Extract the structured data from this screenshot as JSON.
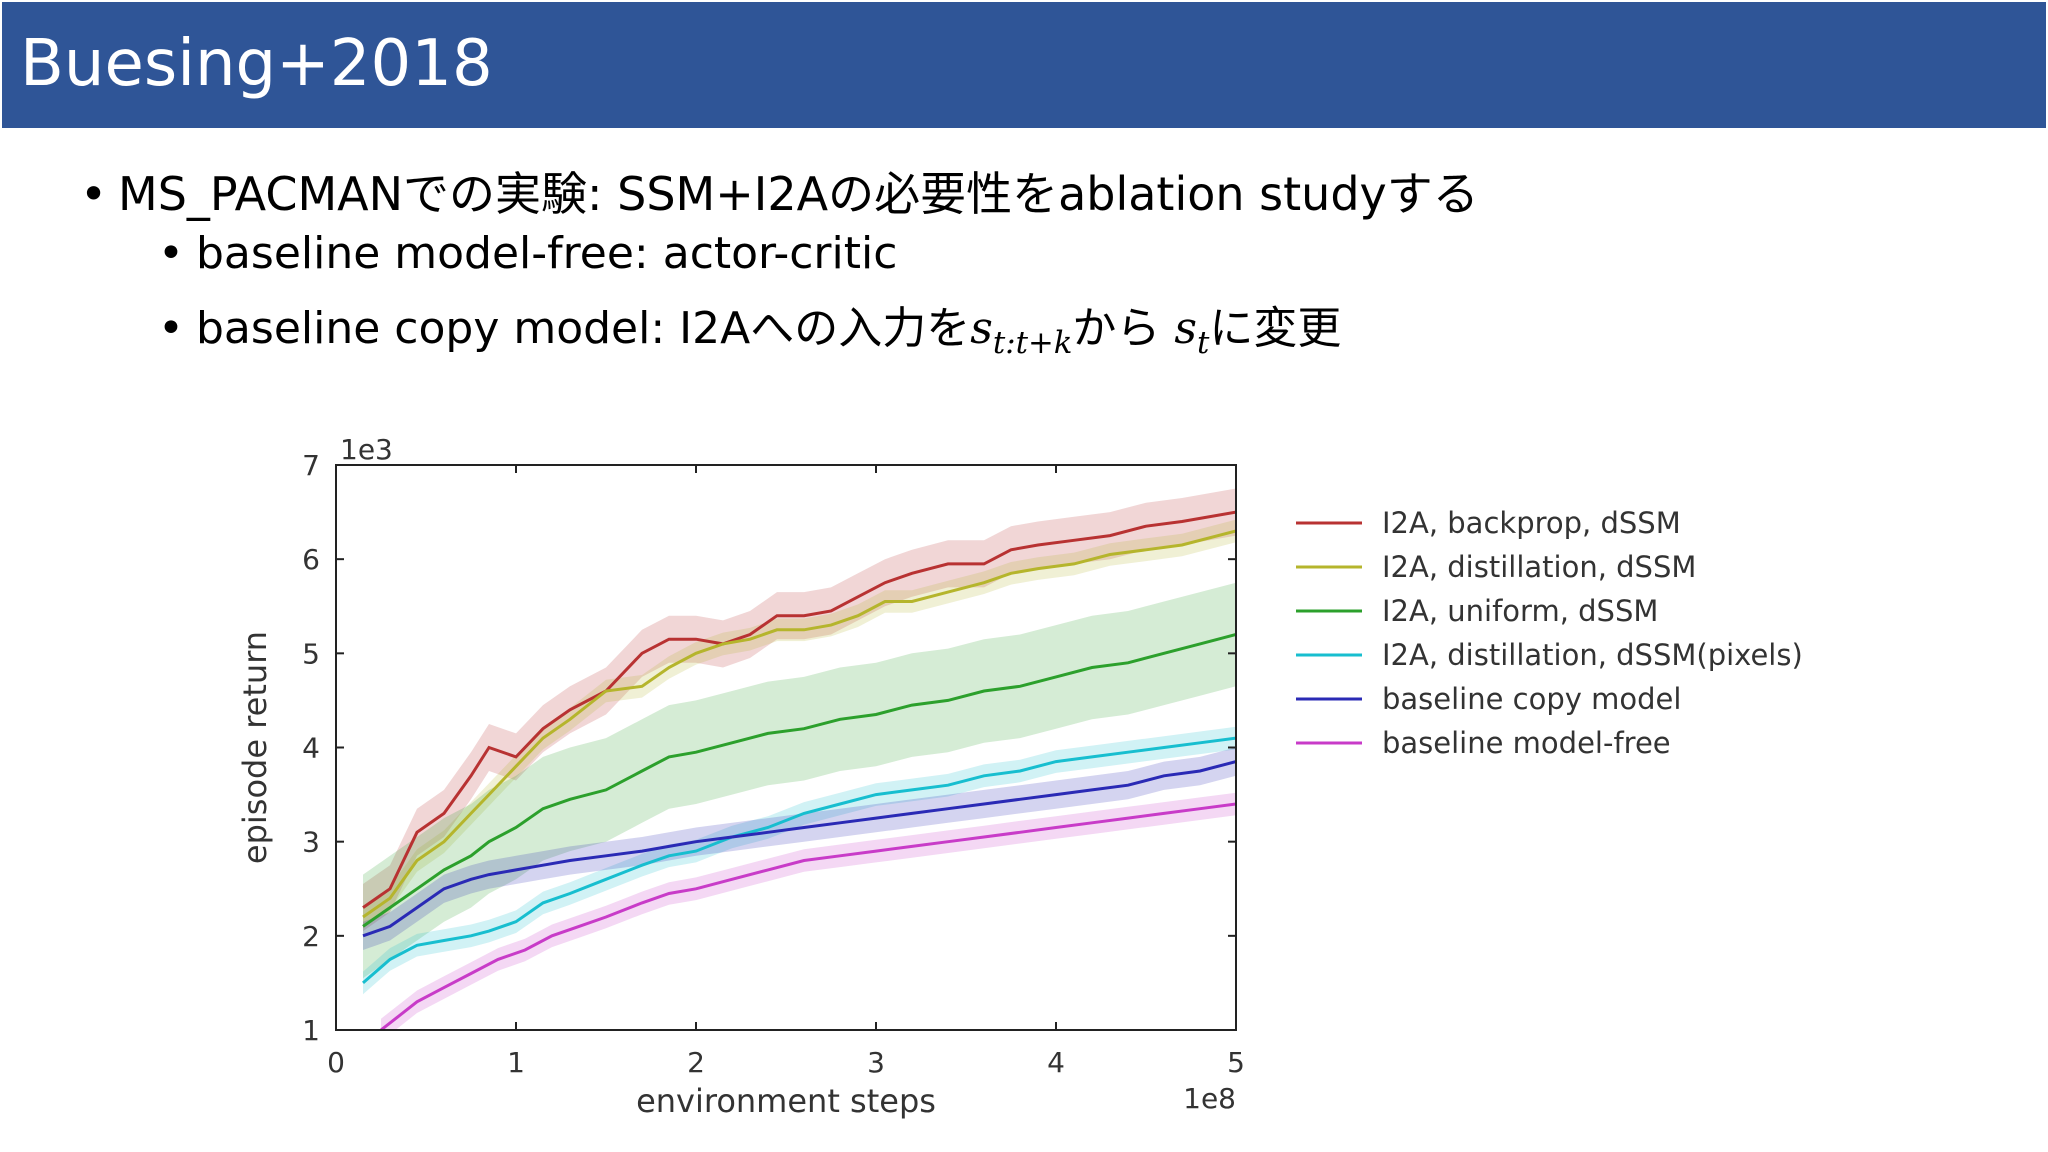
{
  "slide": {
    "title": "Buesing+2018",
    "bullet1": "MS_PACMANでの実験: SSM+I2Aの必要性をablation studyする",
    "bullet2": "baseline model-free: actor-critic",
    "bullet3_pre": "baseline copy model: I2Aへの入力を",
    "bullet3_math1": "s",
    "bullet3_math1_sub": "t:t+k",
    "bullet3_mid": "から ",
    "bullet3_math2": "s",
    "bullet3_math2_sub": "t",
    "bullet3_post": "に変更"
  },
  "chart_data": {
    "type": "line",
    "xlabel": "environment steps",
    "ylabel": "episode return",
    "x_multiplier": "1e8",
    "y_multiplier": "1e3",
    "xlim": [
      0,
      5
    ],
    "ylim": [
      1,
      7
    ],
    "xticks": [
      "0",
      "1",
      "2",
      "3",
      "4",
      "5"
    ],
    "yticks": [
      "1",
      "2",
      "3",
      "4",
      "5",
      "6",
      "7"
    ],
    "grid": false,
    "legend_position": "right-outside",
    "series": [
      {
        "name": "I2A, backprop, dSSM",
        "color": "#b83232",
        "x": [
          0.15,
          0.3,
          0.45,
          0.6,
          0.75,
          0.85,
          1.0,
          1.15,
          1.3,
          1.5,
          1.7,
          1.85,
          2.0,
          2.15,
          2.3,
          2.45,
          2.6,
          2.75,
          2.9,
          3.05,
          3.2,
          3.4,
          3.6,
          3.75,
          3.9,
          4.1,
          4.3,
          4.5,
          4.7,
          5.0
        ],
        "y": [
          2.3,
          2.5,
          3.1,
          3.3,
          3.7,
          4.0,
          3.9,
          4.2,
          4.4,
          4.6,
          5.0,
          5.15,
          5.15,
          5.1,
          5.2,
          5.4,
          5.4,
          5.45,
          5.6,
          5.75,
          5.85,
          5.95,
          5.95,
          6.1,
          6.15,
          6.2,
          6.25,
          6.35,
          6.4,
          6.5
        ],
        "band": 0.25
      },
      {
        "name": "I2A, distillation, dSSM",
        "color": "#b5b52c",
        "x": [
          0.15,
          0.3,
          0.45,
          0.6,
          0.75,
          0.85,
          1.0,
          1.15,
          1.3,
          1.5,
          1.7,
          1.85,
          2.0,
          2.15,
          2.3,
          2.45,
          2.6,
          2.75,
          2.9,
          3.05,
          3.2,
          3.4,
          3.6,
          3.75,
          3.9,
          4.1,
          4.3,
          4.5,
          4.7,
          5.0
        ],
        "y": [
          2.2,
          2.4,
          2.8,
          3.0,
          3.3,
          3.5,
          3.8,
          4.1,
          4.3,
          4.6,
          4.65,
          4.85,
          5.0,
          5.1,
          5.15,
          5.25,
          5.25,
          5.3,
          5.4,
          5.55,
          5.55,
          5.65,
          5.75,
          5.85,
          5.9,
          5.95,
          6.05,
          6.1,
          6.15,
          6.3
        ],
        "band": 0.12
      },
      {
        "name": "I2A, uniform, dSSM",
        "color": "#2ca02c",
        "x": [
          0.15,
          0.3,
          0.45,
          0.6,
          0.75,
          0.85,
          1.0,
          1.15,
          1.3,
          1.5,
          1.7,
          1.85,
          2.0,
          2.2,
          2.4,
          2.6,
          2.8,
          3.0,
          3.2,
          3.4,
          3.6,
          3.8,
          4.0,
          4.2,
          4.4,
          4.6,
          4.8,
          5.0
        ],
        "y": [
          2.1,
          2.3,
          2.5,
          2.7,
          2.85,
          3.0,
          3.15,
          3.35,
          3.45,
          3.55,
          3.75,
          3.9,
          3.95,
          4.05,
          4.15,
          4.2,
          4.3,
          4.35,
          4.45,
          4.5,
          4.6,
          4.65,
          4.75,
          4.85,
          4.9,
          5.0,
          5.1,
          5.2
        ],
        "band": 0.55
      },
      {
        "name": "I2A, distillation, dSSM(pixels)",
        "color": "#17becf",
        "x": [
          0.15,
          0.3,
          0.45,
          0.6,
          0.75,
          0.85,
          1.0,
          1.15,
          1.3,
          1.5,
          1.7,
          1.85,
          2.0,
          2.2,
          2.4,
          2.6,
          2.8,
          3.0,
          3.2,
          3.4,
          3.6,
          3.8,
          4.0,
          4.2,
          4.4,
          4.6,
          4.8,
          5.0
        ],
        "y": [
          1.5,
          1.75,
          1.9,
          1.95,
          2.0,
          2.05,
          2.15,
          2.35,
          2.45,
          2.6,
          2.75,
          2.85,
          2.9,
          3.05,
          3.15,
          3.3,
          3.4,
          3.5,
          3.55,
          3.6,
          3.7,
          3.75,
          3.85,
          3.9,
          3.95,
          4.0,
          4.05,
          4.1
        ],
        "band": 0.12
      },
      {
        "name": "baseline copy model",
        "color": "#2a2ab5",
        "x": [
          0.15,
          0.3,
          0.45,
          0.6,
          0.75,
          0.85,
          1.0,
          1.15,
          1.3,
          1.5,
          1.7,
          1.85,
          2.0,
          2.2,
          2.4,
          2.6,
          2.8,
          3.0,
          3.2,
          3.4,
          3.6,
          3.8,
          4.0,
          4.2,
          4.4,
          4.6,
          4.8,
          5.0
        ],
        "y": [
          2.0,
          2.1,
          2.3,
          2.5,
          2.6,
          2.65,
          2.7,
          2.75,
          2.8,
          2.85,
          2.9,
          2.95,
          3.0,
          3.05,
          3.1,
          3.15,
          3.2,
          3.25,
          3.3,
          3.35,
          3.4,
          3.45,
          3.5,
          3.55,
          3.6,
          3.7,
          3.75,
          3.85
        ],
        "band": 0.15
      },
      {
        "name": "baseline model-free",
        "color": "#c83bc8",
        "x": [
          0.25,
          0.35,
          0.45,
          0.6,
          0.75,
          0.9,
          1.05,
          1.2,
          1.35,
          1.5,
          1.7,
          1.85,
          2.0,
          2.2,
          2.4,
          2.6,
          2.8,
          3.0,
          3.2,
          3.4,
          3.6,
          3.8,
          4.0,
          4.2,
          4.4,
          4.6,
          4.8,
          5.0
        ],
        "y": [
          1.0,
          1.15,
          1.3,
          1.45,
          1.6,
          1.75,
          1.85,
          2.0,
          2.1,
          2.2,
          2.35,
          2.45,
          2.5,
          2.6,
          2.7,
          2.8,
          2.85,
          2.9,
          2.95,
          3.0,
          3.05,
          3.1,
          3.15,
          3.2,
          3.25,
          3.3,
          3.35,
          3.4
        ],
        "band": 0.12
      }
    ]
  }
}
